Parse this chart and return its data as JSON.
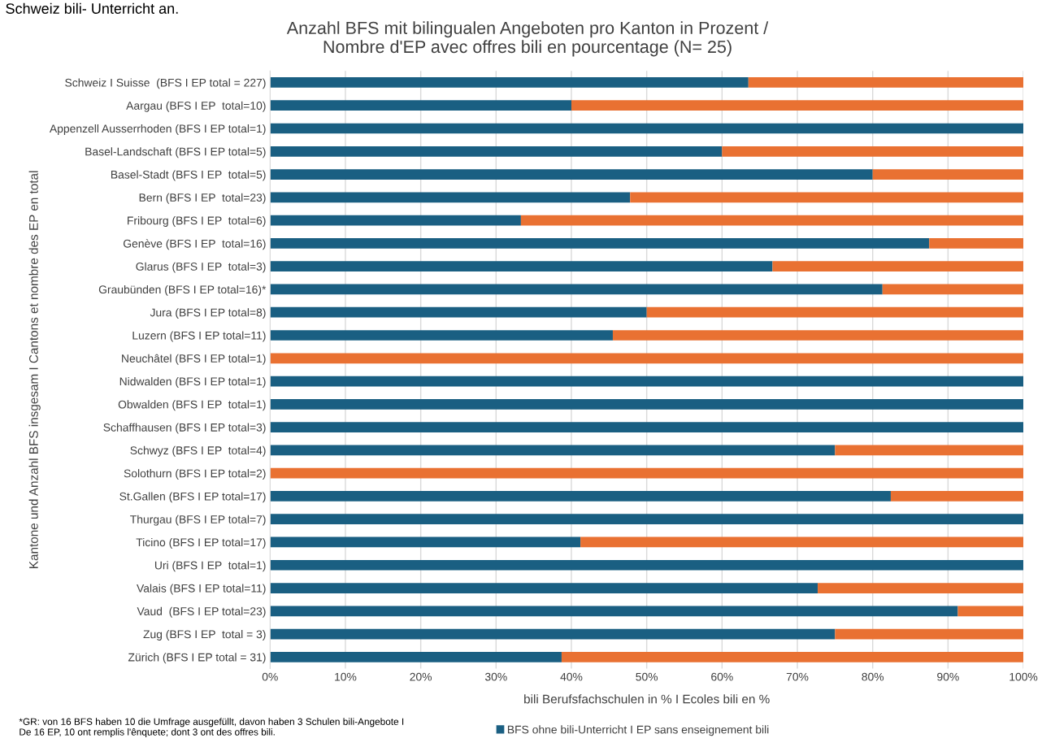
{
  "chart_data": {
    "type": "bar",
    "orientation": "horizontal",
    "stacked": true,
    "title": "Anzahl BFS mit bilingualen Angeboten pro Kanton in Prozent /\nNombre d'EP avec offres bili en pourcentage (N= 25)",
    "xlabel": "bili Berufsfachschulen in % I Ecoles bili en %",
    "ylabel": "Kantone und Anzahl BFS insgesam I Cantons et nombre des EP en total",
    "categories": [
      "Schweiz I Suisse  (BFS I EP total = 227)",
      "Aargau (BFS I EP  total=10)",
      "Appenzell Ausserrhoden (BFS I EP total=1)",
      "Basel-Landschaft (BFS I EP total=5)",
      "Basel-Stadt (BFS I EP  total=5)",
      "Bern (BFS I EP  total=23)",
      "Fribourg (BFS I EP  total=6)",
      "Genève (BFS I EP  total=16)",
      "Glarus (BFS I EP  total=3)",
      "Graubünden (BFS I EP total=16)*",
      "Jura (BFS I EP total=8)",
      "Luzern (BFS I EP total=11)",
      "Neuchâtel (BFS I EP total=1)",
      "Nidwalden (BFS I EP total=1)",
      "Obwalden (BFS I EP  total=1)",
      "Schaffhausen (BFS I EP total=3)",
      "Schwyz (BFS I EP  total=4)",
      "Solothurn (BFS I EP total=2)",
      "St.Gallen (BFS I EP total=17)",
      "Thurgau (BFS I EP total=7)",
      "Ticino (BFS I EP total=17)",
      "Uri (BFS I EP  total=1)",
      "Valais (BFS I EP total=11)",
      "Vaud  (BFS I EP total=23)",
      "Zug (BFS I EP  total = 3)",
      "Zürich (BFS I EP total = 31)"
    ],
    "series": [
      {
        "name": "BFS ohne bili-Unterricht I EP sans enseignement bili",
        "color": "#1a5f82",
        "values": [
          63.5,
          40,
          100,
          60,
          80,
          47.8,
          33.3,
          87.5,
          66.7,
          81.3,
          50,
          45.5,
          0,
          100,
          100,
          100,
          75,
          0,
          82.4,
          100,
          41.2,
          100,
          72.7,
          91.3,
          75,
          38.7
        ]
      },
      {
        "color": "#e97132",
        "values": [
          36.5,
          60,
          0,
          40,
          20,
          52.2,
          66.7,
          12.5,
          33.3,
          18.7,
          50,
          54.5,
          100,
          0,
          0,
          0,
          25,
          100,
          17.6,
          0,
          58.8,
          0,
          27.3,
          8.7,
          25,
          61.3
        ]
      }
    ],
    "xlim": [
      0,
      100
    ],
    "xticks": [
      {
        "value": 0,
        "label": "0%"
      },
      {
        "value": 10,
        "label": "10%"
      },
      {
        "value": 20,
        "label": "20%"
      },
      {
        "value": 30,
        "label": "30%"
      },
      {
        "value": 40,
        "label": "40%"
      },
      {
        "value": 50,
        "label": "50%"
      },
      {
        "value": 60,
        "label": "60%"
      },
      {
        "value": 70,
        "label": "70%"
      },
      {
        "value": 80,
        "label": "80%"
      },
      {
        "value": 90,
        "label": "90%"
      },
      {
        "value": 100,
        "label": "100%"
      }
    ],
    "grid": "x",
    "legend": "bottom",
    "annotations": [
      "Schweiz bili- Unterricht an.",
      "*GR: von 16 BFS haben 10 die Umfrage ausgefüllt, davon haben 3 Schulen bili-Angebote I\nDe 16 EP, 10 ont remplis l'ênquete; dont 3 ont des offres bili."
    ]
  }
}
